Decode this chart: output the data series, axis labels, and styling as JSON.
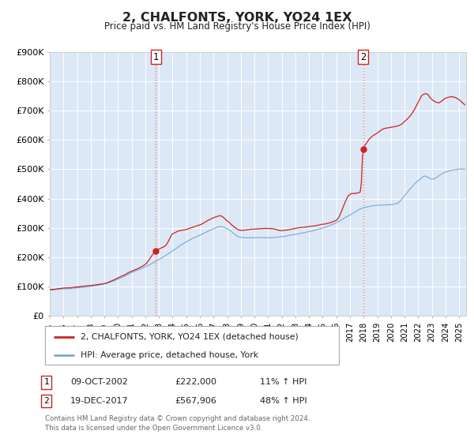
{
  "title": "2, CHALFONTS, YORK, YO24 1EX",
  "subtitle": "Price paid vs. HM Land Registry's House Price Index (HPI)",
  "ylim": [
    0,
    900000
  ],
  "xlim_start": 1995.0,
  "xlim_end": 2025.5,
  "background_color": "#ffffff",
  "plot_bg_color": "#dce8f5",
  "grid_color": "#ffffff",
  "sale1_date": 2002.78,
  "sale1_price": 222000,
  "sale1_label": "1",
  "sale2_date": 2017.96,
  "sale2_price": 567906,
  "sale2_label": "2",
  "hpi_line_color": "#7aa8d4",
  "price_line_color": "#cc2222",
  "sale_dot_color": "#cc2222",
  "vline_color": "#e88080",
  "legend_label_price": "2, CHALFONTS, YORK, YO24 1EX (detached house)",
  "legend_label_hpi": "HPI: Average price, detached house, York",
  "table_row1": [
    "1",
    "09-OCT-2002",
    "£222,000",
    "11% ↑ HPI"
  ],
  "table_row2": [
    "2",
    "19-DEC-2017",
    "£567,906",
    "48% ↑ HPI"
  ],
  "footer_line1": "Contains HM Land Registry data © Crown copyright and database right 2024.",
  "footer_line2": "This data is licensed under the Open Government Licence v3.0.",
  "ytick_labels": [
    "£0",
    "£100K",
    "£200K",
    "£300K",
    "£400K",
    "£500K",
    "£600K",
    "£700K",
    "£800K",
    "£900K"
  ],
  "ytick_values": [
    0,
    100000,
    200000,
    300000,
    400000,
    500000,
    600000,
    700000,
    800000,
    900000
  ],
  "xtick_years": [
    1995,
    1996,
    1997,
    1998,
    1999,
    2000,
    2001,
    2002,
    2003,
    2004,
    2005,
    2006,
    2007,
    2008,
    2009,
    2010,
    2011,
    2012,
    2013,
    2014,
    2015,
    2016,
    2017,
    2018,
    2019,
    2020,
    2021,
    2022,
    2023,
    2024,
    2025
  ]
}
